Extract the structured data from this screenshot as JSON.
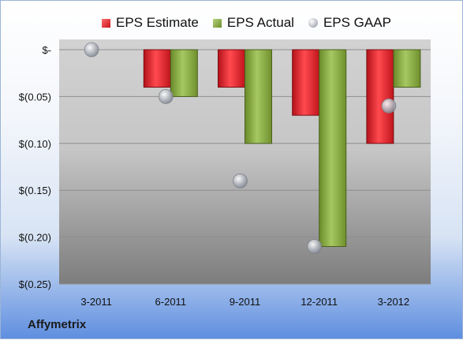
{
  "chart_data": {
    "type": "bar",
    "categories": [
      "3-2011",
      "6-2011",
      "9-2011",
      "12-2011",
      "3-2012"
    ],
    "series": [
      {
        "name": "EPS Estimate",
        "kind": "bar",
        "color": "#e0202a",
        "values": [
          0,
          -0.04,
          -0.04,
          -0.07,
          -0.1
        ]
      },
      {
        "name": "EPS Actual",
        "kind": "bar",
        "color": "#8cb042",
        "values": [
          0,
          -0.05,
          -0.1,
          -0.21,
          -0.04
        ]
      },
      {
        "name": "EPS GAAP",
        "kind": "scatter",
        "color": "#a9adb5",
        "values": [
          0,
          -0.05,
          -0.14,
          -0.21,
          -0.06
        ]
      }
    ],
    "yticks": [
      {
        "value": 0,
        "label": "$-"
      },
      {
        "value": -0.05,
        "label": "$(0.05)"
      },
      {
        "value": -0.1,
        "label": "$(0.10)"
      },
      {
        "value": -0.15,
        "label": "$(0.15)"
      },
      {
        "value": -0.2,
        "label": "$(0.20)"
      },
      {
        "value": -0.25,
        "label": "$(0.25)"
      }
    ],
    "ylim": [
      -0.25,
      0
    ],
    "grid": true,
    "legend_position": "top",
    "title": "",
    "xlabel": "",
    "ylabel": ""
  },
  "company": "Affymetrix"
}
